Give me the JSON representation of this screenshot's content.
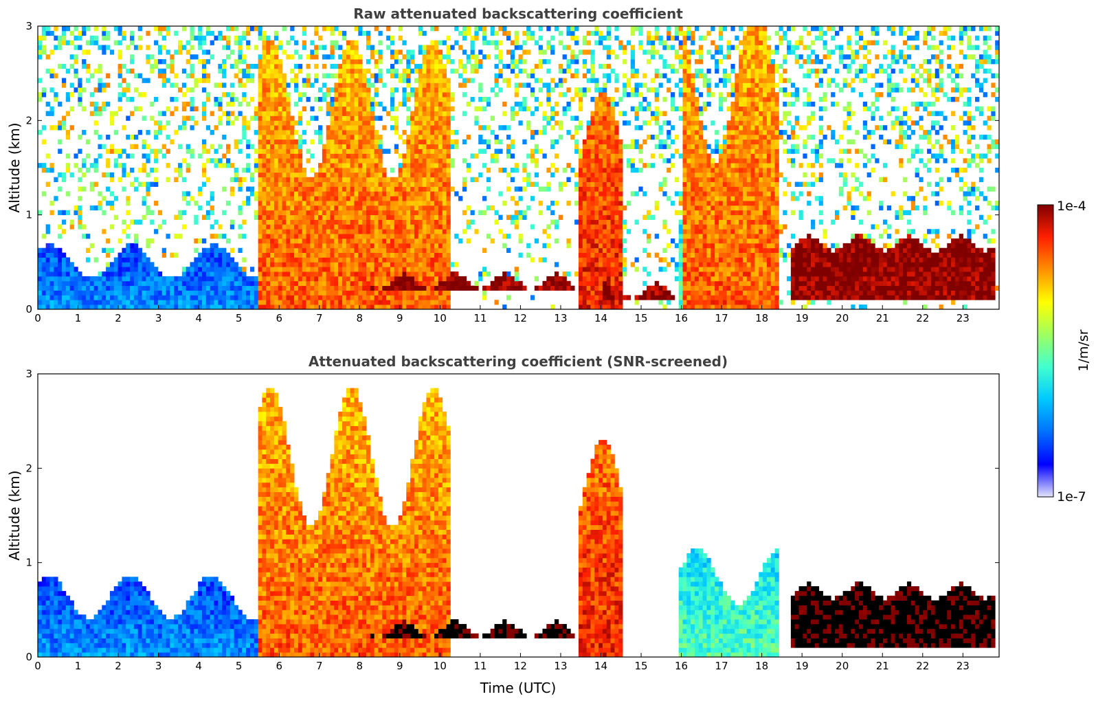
{
  "colors": {
    "colormap": [
      "#e4e4fa",
      "#0000ff",
      "#0070ff",
      "#00c8ff",
      "#40ffd0",
      "#a0ff60",
      "#ffff00",
      "#ff9000",
      "#ff2000",
      "#800000"
    ],
    "very_high": "#000000"
  },
  "chart_data": [
    {
      "type": "heatmap",
      "title": "Raw attenuated backscattering coefficient",
      "xlabel": "",
      "ylabel": "Altitude (km)",
      "xlim": [
        0,
        23.9
      ],
      "ylim": [
        0,
        3
      ],
      "xticks": [
        "0",
        "1",
        "2",
        "3",
        "4",
        "5",
        "6",
        "7",
        "8",
        "9",
        "10",
        "11",
        "12",
        "13",
        "14",
        "15",
        "16",
        "17",
        "18",
        "19",
        "20",
        "21",
        "22",
        "23"
      ],
      "yticks": [
        "0",
        "1",
        "2",
        "3"
      ],
      "screened": false,
      "features": [
        {
          "name": "boundary layer",
          "time_utc": [
            0,
            5.5
          ],
          "top_km": 0.6,
          "log10_value": -6.2
        },
        {
          "name": "rain / virga column",
          "time_utc": [
            5.5,
            10.3
          ],
          "top_km": 2.5,
          "log10_value": -4.5
        },
        {
          "name": "cloud base layer",
          "time_utc": [
            8.3,
            13.3
          ],
          "altitude_km": [
            0.2,
            0.3
          ],
          "log10_value": -4.0
        },
        {
          "name": "rain column",
          "time_utc": [
            13.4,
            14.5
          ],
          "top_km": 2.0,
          "log10_value": -4.3
        },
        {
          "name": "cloud base layer",
          "time_utc": [
            14.0,
            15.8
          ],
          "altitude_km": [
            0.1,
            0.2
          ],
          "log10_value": -4.0
        },
        {
          "name": "mixed layer",
          "time_utc": [
            15.9,
            18.4
          ],
          "top_km": 1.0,
          "log10_value": -5.6
        },
        {
          "name": "rain column",
          "time_utc": [
            16.0,
            18.4
          ],
          "top_km": 2.8,
          "log10_value": -4.5
        },
        {
          "name": "cloud layer",
          "time_utc": [
            18.7,
            23.8
          ],
          "altitude_km": [
            0.1,
            0.7
          ],
          "log10_value": -4.0
        }
      ]
    },
    {
      "type": "heatmap",
      "title": "Attenuated backscattering coefficient (SNR-screened)",
      "xlabel": "Time (UTC)",
      "ylabel": "Altitude (km)",
      "xlim": [
        0,
        23.9
      ],
      "ylim": [
        0,
        3
      ],
      "xticks": [
        "0",
        "1",
        "2",
        "3",
        "4",
        "5",
        "6",
        "7",
        "8",
        "9",
        "10",
        "11",
        "12",
        "13",
        "14",
        "15",
        "16",
        "17",
        "18",
        "19",
        "20",
        "21",
        "22",
        "23"
      ],
      "yticks": [
        "0",
        "1",
        "2",
        "3"
      ],
      "screened": true,
      "features": [
        {
          "name": "boundary layer",
          "time_utc": [
            0,
            5.5
          ],
          "top_km": 0.75,
          "log10_value": -6.2
        },
        {
          "name": "rain / virga column",
          "time_utc": [
            5.5,
            10.3
          ],
          "top_km": 2.5,
          "log10_value": -4.5
        },
        {
          "name": "cloud base layer",
          "time_utc": [
            8.3,
            13.3
          ],
          "altitude_km": [
            0.2,
            0.3
          ],
          "log10_value": -3.8
        },
        {
          "name": "rain column",
          "time_utc": [
            13.4,
            14.5
          ],
          "top_km": 2.0,
          "log10_value": -4.3
        },
        {
          "name": "mixed layer",
          "time_utc": [
            15.9,
            18.4
          ],
          "top_km": 1.0,
          "log10_value": -5.6
        },
        {
          "name": "cloud layer",
          "time_utc": [
            18.7,
            23.8
          ],
          "altitude_km": [
            0.1,
            0.7
          ],
          "log10_value": -3.8
        }
      ]
    }
  ],
  "colorbar": {
    "label": "1/m/sr",
    "max_label": "1e-4",
    "min_label": "1e-7",
    "range_log10": [
      -7,
      -4
    ]
  }
}
